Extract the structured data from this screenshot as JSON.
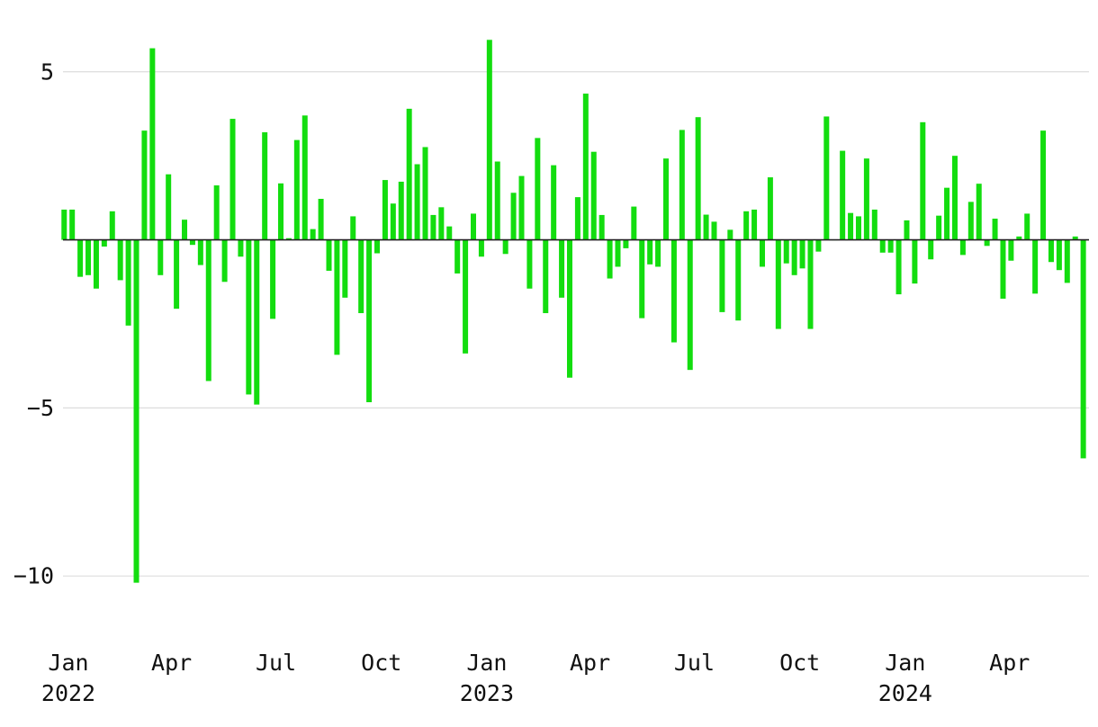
{
  "chart_data": {
    "type": "bar",
    "title": "",
    "xlabel": "",
    "ylabel": "",
    "ylim": [
      -11.2,
      6.6
    ],
    "yticks": [
      5,
      -5,
      -10
    ],
    "ytick_labels": [
      "5",
      "−5",
      "−10"
    ],
    "grid": "horizontal",
    "bar_color": "#13dd0f",
    "x_range": [
      "2022-01-01",
      "2024-06-14"
    ],
    "xticks": [
      {
        "date": "2022-01-01",
        "line1": "Jan",
        "line2": "2022"
      },
      {
        "date": "2022-04-01",
        "line1": "Apr",
        "line2": ""
      },
      {
        "date": "2022-07-01",
        "line1": "Jul",
        "line2": ""
      },
      {
        "date": "2022-10-01",
        "line1": "Oct",
        "line2": ""
      },
      {
        "date": "2023-01-01",
        "line1": "Jan",
        "line2": "2023"
      },
      {
        "date": "2023-04-01",
        "line1": "Apr",
        "line2": ""
      },
      {
        "date": "2023-07-01",
        "line1": "Jul",
        "line2": ""
      },
      {
        "date": "2023-10-01",
        "line1": "Oct",
        "line2": ""
      },
      {
        "date": "2024-01-01",
        "line1": "Jan",
        "line2": "2024"
      },
      {
        "date": "2024-04-01",
        "line1": "Apr",
        "line2": ""
      }
    ],
    "series": [
      {
        "x": [
          "2022-01-02",
          "2022-01-09",
          "2022-01-16",
          "2022-01-23",
          "2022-01-30",
          "2022-02-06",
          "2022-02-13",
          "2022-02-20",
          "2022-02-27",
          "2022-03-06",
          "2022-03-13",
          "2022-03-20",
          "2022-03-27",
          "2022-04-03",
          "2022-04-10",
          "2022-04-17",
          "2022-04-24",
          "2022-05-01",
          "2022-05-08",
          "2022-05-15",
          "2022-05-22",
          "2022-05-29",
          "2022-06-05",
          "2022-06-12",
          "2022-06-19",
          "2022-06-26",
          "2022-07-03",
          "2022-07-10",
          "2022-07-17",
          "2022-07-24",
          "2022-07-31",
          "2022-08-07",
          "2022-08-14",
          "2022-08-21",
          "2022-08-28",
          "2022-09-04",
          "2022-09-11",
          "2022-09-18",
          "2022-09-25",
          "2022-10-02",
          "2022-10-09",
          "2022-10-16",
          "2022-10-23",
          "2022-10-30",
          "2022-11-06",
          "2022-11-13",
          "2022-11-20",
          "2022-11-27",
          "2022-12-04",
          "2022-12-11",
          "2022-12-18",
          "2022-12-25",
          "2023-01-01",
          "2023-01-08",
          "2023-01-15",
          "2023-01-22",
          "2023-01-29",
          "2023-02-05",
          "2023-02-12",
          "2023-02-19",
          "2023-02-26",
          "2023-03-05",
          "2023-03-12",
          "2023-03-19",
          "2023-03-26",
          "2023-04-02",
          "2023-04-09",
          "2023-04-16",
          "2023-04-23",
          "2023-04-30",
          "2023-05-07",
          "2023-05-14",
          "2023-05-21",
          "2023-05-28",
          "2023-06-04",
          "2023-06-11",
          "2023-06-18",
          "2023-06-25",
          "2023-07-02",
          "2023-07-09",
          "2023-07-16",
          "2023-07-23",
          "2023-07-30",
          "2023-08-06",
          "2023-08-13",
          "2023-08-20",
          "2023-08-27",
          "2023-09-03",
          "2023-09-10",
          "2023-09-17",
          "2023-09-24",
          "2023-10-01",
          "2023-10-08",
          "2023-10-15",
          "2023-10-22",
          "2023-10-29",
          "2023-11-05",
          "2023-11-12",
          "2023-11-19",
          "2023-11-26",
          "2023-12-03",
          "2023-12-10",
          "2023-12-17",
          "2023-12-24",
          "2023-12-31",
          "2024-01-07",
          "2024-01-14",
          "2024-01-21",
          "2024-01-28",
          "2024-02-04",
          "2024-02-11",
          "2024-02-18",
          "2024-02-25",
          "2024-03-03",
          "2024-03-10",
          "2024-03-17",
          "2024-03-24",
          "2024-03-31",
          "2024-04-07",
          "2024-04-14",
          "2024-04-21",
          "2024-04-28",
          "2024-05-05",
          "2024-05-12",
          "2024-05-19",
          "2024-05-26",
          "2024-06-02",
          "2024-06-09"
        ],
        "values": [
          0.9,
          0.9,
          -1.1,
          -1.05,
          -1.45,
          -0.2,
          0.85,
          -1.2,
          -2.55,
          -10.2,
          3.25,
          5.7,
          -1.05,
          1.95,
          -2.05,
          0.6,
          -0.15,
          -0.75,
          -4.2,
          1.62,
          -1.25,
          3.6,
          -0.5,
          -4.6,
          -4.9,
          3.2,
          -2.35,
          1.68,
          0.05,
          2.97,
          3.7,
          0.32,
          1.22,
          -0.92,
          -3.42,
          -1.72,
          0.7,
          -2.18,
          -4.83,
          -0.4,
          1.78,
          1.08,
          1.73,
          3.9,
          2.25,
          2.76,
          0.74,
          0.97,
          0.4,
          -1.0,
          -3.38,
          0.78,
          -0.5,
          5.95,
          2.33,
          -0.42,
          1.4,
          1.9,
          -1.45,
          3.03,
          -2.18,
          2.22,
          -1.72,
          -4.1,
          1.27,
          4.35,
          2.62,
          0.74,
          -1.15,
          -0.8,
          -0.25,
          0.99,
          -2.33,
          -0.73,
          -0.8,
          2.42,
          -3.05,
          3.27,
          -3.87,
          3.65,
          0.75,
          0.54,
          -2.15,
          0.3,
          -2.4,
          0.85,
          0.9,
          -0.8,
          1.86,
          -2.65,
          -0.7,
          -1.05,
          -0.85,
          -2.65,
          -0.35,
          3.67,
          0.0,
          2.65,
          0.8,
          0.7,
          2.42,
          0.9,
          -0.38,
          -0.38,
          -1.62,
          0.58,
          -1.3,
          3.5,
          -0.58,
          0.72,
          1.55,
          2.5,
          -0.45,
          1.13,
          1.67,
          -0.18,
          0.63,
          -1.75,
          -0.62,
          0.1,
          0.78,
          -1.6,
          3.25,
          -0.66,
          -0.9,
          -1.28,
          0.1,
          -6.5
        ]
      }
    ]
  }
}
